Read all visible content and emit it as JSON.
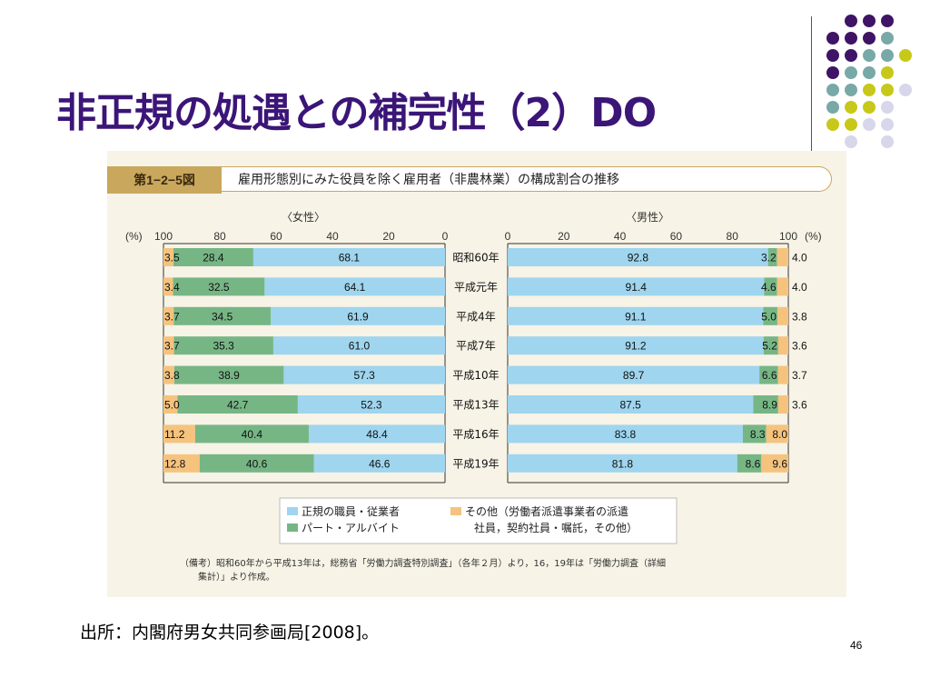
{
  "slide": {
    "title": "非正規の処遇との補完性（2）DO",
    "source": "出所：内閣府男女共同参画局[2008]。",
    "page_number": "46"
  },
  "figure": {
    "number": "第1−2−5図",
    "title": "雇用形態別にみた役員を除く雇用者（非農林業）の構成割合の推移",
    "note": "（備考）昭和60年から平成13年は，総務省「労働力調査特別調査」（各年２月）より，16，19年は「労働力調査（詳細集計）」より作成。",
    "legend": {
      "regular": "正規の職員・従業者",
      "part": "パート・アルバイト",
      "other_line1": "その他（労働者派遣事業者の派遣",
      "other_line2": "社員，契約社員・嘱託，その他）"
    }
  },
  "chart_data": {
    "type": "bar",
    "stacked": true,
    "orientation": "horizontal",
    "categories": [
      "昭和60年",
      "平成元年",
      "平成4年",
      "平成7年",
      "平成10年",
      "平成13年",
      "平成16年",
      "平成19年"
    ],
    "colors": {
      "regular": "#9fd5ee",
      "part": "#76b685",
      "other": "#f6c37e"
    },
    "female": {
      "label": "〈女性〉",
      "series": [
        {
          "name": "正規の職員・従業者",
          "values": [
            68.1,
            64.1,
            61.9,
            61.0,
            57.3,
            52.3,
            48.4,
            46.6
          ]
        },
        {
          "name": "パート・アルバイト",
          "values": [
            28.4,
            32.5,
            34.5,
            35.3,
            38.9,
            42.7,
            40.4,
            40.6
          ]
        },
        {
          "name": "その他",
          "values": [
            3.5,
            3.4,
            3.7,
            3.7,
            3.8,
            5.0,
            11.2,
            12.8
          ]
        }
      ],
      "axis_ticks": [
        "100",
        "80",
        "60",
        "40",
        "20",
        "0"
      ],
      "unit": "(%)"
    },
    "male": {
      "label": "〈男性〉",
      "series": [
        {
          "name": "正規の職員・従業者",
          "values": [
            92.8,
            91.4,
            91.1,
            91.2,
            89.7,
            87.5,
            83.8,
            81.8
          ]
        },
        {
          "name": "パート・アルバイト",
          "values": [
            3.2,
            4.6,
            5.0,
            5.2,
            6.6,
            8.9,
            8.3,
            8.6
          ]
        },
        {
          "name": "その他",
          "values": [
            4.0,
            4.0,
            3.8,
            3.6,
            3.7,
            3.6,
            8.0,
            9.6
          ]
        }
      ],
      "axis_ticks": [
        "0",
        "20",
        "40",
        "60",
        "80",
        "100"
      ],
      "unit": "(%)"
    },
    "xlim": [
      0,
      100
    ]
  }
}
